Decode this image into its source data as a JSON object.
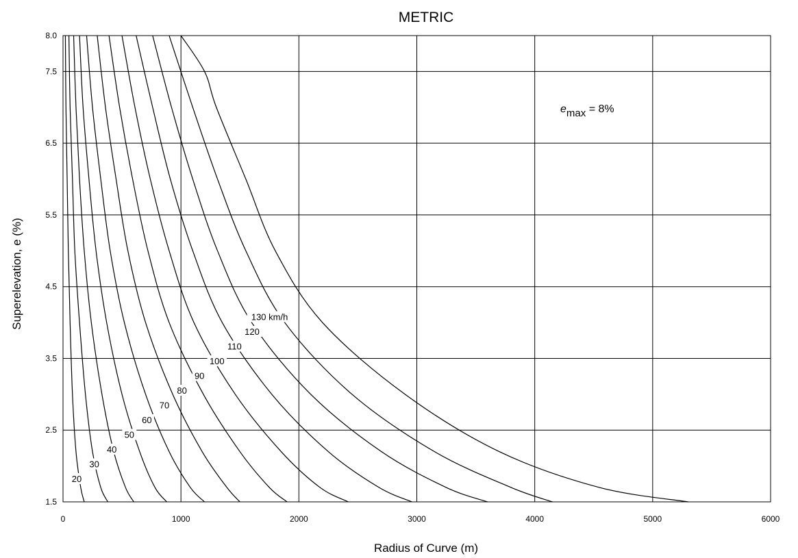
{
  "chart_data": {
    "type": "line",
    "title": "METRIC",
    "xlabel": "Radius of Curve (m)",
    "ylabel": "Superelevation, e (%)",
    "xlim": [
      0,
      6000
    ],
    "ylim": [
      1.5,
      8.0
    ],
    "xticks": [
      "0",
      "1000",
      "2000",
      "3000",
      "4000",
      "5000",
      "6000"
    ],
    "yticks": [
      "1.5",
      "2.5",
      "3.5",
      "4.5",
      "5.5",
      "6.5",
      "7.5",
      "8.0"
    ],
    "grid": true,
    "annotation": {
      "prefix": "e",
      "subscript": "max",
      "suffix": " = 8%"
    },
    "series": [
      {
        "name": "20",
        "points": [
          [
            20,
            8.0
          ],
          [
            25,
            7.0
          ],
          [
            35,
            6.0
          ],
          [
            45,
            5.0
          ],
          [
            60,
            4.0
          ],
          [
            80,
            3.0
          ],
          [
            110,
            2.2
          ],
          [
            150,
            1.7
          ],
          [
            180,
            1.5
          ]
        ]
      },
      {
        "name": "30",
        "points": [
          [
            50,
            8.0
          ],
          [
            60,
            7.0
          ],
          [
            80,
            6.0
          ],
          [
            100,
            5.0
          ],
          [
            140,
            4.0
          ],
          [
            190,
            3.0
          ],
          [
            250,
            2.2
          ],
          [
            320,
            1.7
          ],
          [
            380,
            1.5
          ]
        ]
      },
      {
        "name": "40",
        "points": [
          [
            90,
            8.0
          ],
          [
            110,
            7.0
          ],
          [
            140,
            6.0
          ],
          [
            180,
            5.0
          ],
          [
            240,
            4.0
          ],
          [
            330,
            3.0
          ],
          [
            430,
            2.2
          ],
          [
            530,
            1.7
          ],
          [
            600,
            1.5
          ]
        ]
      },
      {
        "name": "50",
        "points": [
          [
            140,
            8.0
          ],
          [
            170,
            7.0
          ],
          [
            220,
            6.0
          ],
          [
            280,
            5.0
          ],
          [
            370,
            4.0
          ],
          [
            500,
            3.0
          ],
          [
            650,
            2.2
          ],
          [
            780,
            1.7
          ],
          [
            880,
            1.5
          ]
        ]
      },
      {
        "name": "60",
        "points": [
          [
            200,
            8.0
          ],
          [
            250,
            7.0
          ],
          [
            320,
            6.0
          ],
          [
            400,
            5.0
          ],
          [
            520,
            4.0
          ],
          [
            700,
            3.0
          ],
          [
            900,
            2.2
          ],
          [
            1080,
            1.7
          ],
          [
            1200,
            1.5
          ]
        ]
      },
      {
        "name": "70",
        "points": [
          [
            290,
            8.0
          ],
          [
            360,
            7.0
          ],
          [
            450,
            6.0
          ],
          [
            550,
            5.0
          ],
          [
            700,
            4.0
          ],
          [
            930,
            3.0
          ],
          [
            1180,
            2.2
          ],
          [
            1390,
            1.7
          ],
          [
            1500,
            1.5
          ]
        ]
      },
      {
        "name": "80",
        "points": [
          [
            390,
            8.0
          ],
          [
            480,
            7.0
          ],
          [
            590,
            6.0
          ],
          [
            720,
            5.0
          ],
          [
            900,
            4.0
          ],
          [
            1190,
            3.0
          ],
          [
            1500,
            2.2
          ],
          [
            1750,
            1.7
          ],
          [
            1900,
            1.5
          ]
        ]
      },
      {
        "name": "90",
        "points": [
          [
            500,
            8.0
          ],
          [
            610,
            7.0
          ],
          [
            740,
            6.0
          ],
          [
            900,
            5.0
          ],
          [
            1110,
            4.0
          ],
          [
            1460,
            3.0
          ],
          [
            1850,
            2.2
          ],
          [
            2180,
            1.7
          ],
          [
            2420,
            1.5
          ]
        ]
      },
      {
        "name": "100",
        "points": [
          [
            620,
            8.0
          ],
          [
            760,
            7.0
          ],
          [
            910,
            6.0
          ],
          [
            1100,
            5.0
          ],
          [
            1350,
            4.0
          ],
          [
            1770,
            3.0
          ],
          [
            2250,
            2.2
          ],
          [
            2680,
            1.7
          ],
          [
            2960,
            1.5
          ]
        ]
      },
      {
        "name": "110",
        "points": [
          [
            760,
            8.0
          ],
          [
            920,
            7.0
          ],
          [
            1100,
            6.0
          ],
          [
            1310,
            5.0
          ],
          [
            1600,
            4.0
          ],
          [
            2100,
            3.0
          ],
          [
            2700,
            2.2
          ],
          [
            3250,
            1.7
          ],
          [
            3600,
            1.5
          ]
        ]
      },
      {
        "name": "120",
        "points": [
          [
            900,
            8.0
          ],
          [
            1100,
            7.0
          ],
          [
            1310,
            6.0
          ],
          [
            1550,
            5.0
          ],
          [
            1880,
            4.0
          ],
          [
            2450,
            3.0
          ],
          [
            3150,
            2.2
          ],
          [
            3800,
            1.7
          ],
          [
            4150,
            1.5
          ]
        ]
      },
      {
        "name": "130 km/h",
        "points": [
          [
            1000,
            8.0
          ],
          [
            1200,
            7.5
          ],
          [
            1300,
            7.0
          ],
          [
            1550,
            6.0
          ],
          [
            1800,
            5.0
          ],
          [
            2200,
            4.0
          ],
          [
            2900,
            3.0
          ],
          [
            3700,
            2.2
          ],
          [
            4550,
            1.7
          ],
          [
            5300,
            1.5
          ]
        ]
      }
    ]
  }
}
